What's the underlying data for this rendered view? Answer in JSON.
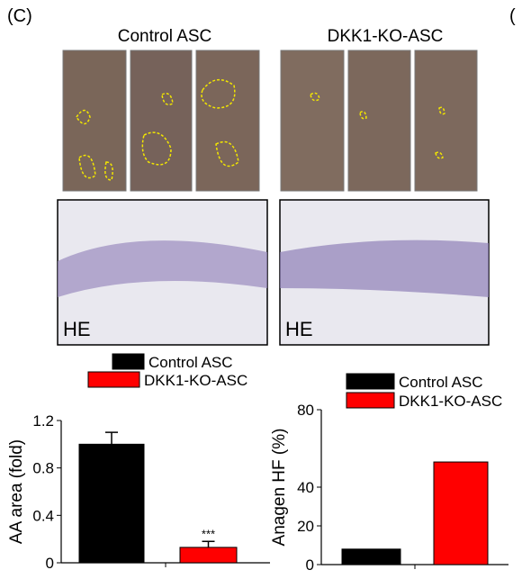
{
  "panel_label": "(C)",
  "next_panel_label": "(",
  "group_labels": [
    "Control ASC",
    "DKK1-KO-ASC"
  ],
  "stain_labels": [
    "HE",
    "HE"
  ],
  "chart_data": [
    {
      "type": "bar",
      "y_label": "AA area (fold)",
      "ylim": [
        0,
        1.2
      ],
      "yticks": [
        0,
        0.4,
        0.8,
        1.2
      ],
      "series": [
        {
          "name": "Control ASC",
          "color": "#000000",
          "values": [
            1.0
          ],
          "errors": [
            0.1
          ]
        },
        {
          "name": "DKK1-KO-ASC",
          "color": "#ff0000",
          "values": [
            0.13
          ],
          "errors": [
            0.05
          ]
        }
      ],
      "annotations": [
        "***"
      ]
    },
    {
      "type": "bar",
      "y_label": "Anagen HF (%)",
      "ylim": [
        0,
        80
      ],
      "yticks": [
        0,
        20,
        40,
        80
      ],
      "series": [
        {
          "name": "Control ASC",
          "color": "#000000",
          "values": [
            8
          ]
        },
        {
          "name": "DKK1-KO-ASC",
          "color": "#ff0000",
          "values": [
            53
          ]
        }
      ]
    }
  ]
}
